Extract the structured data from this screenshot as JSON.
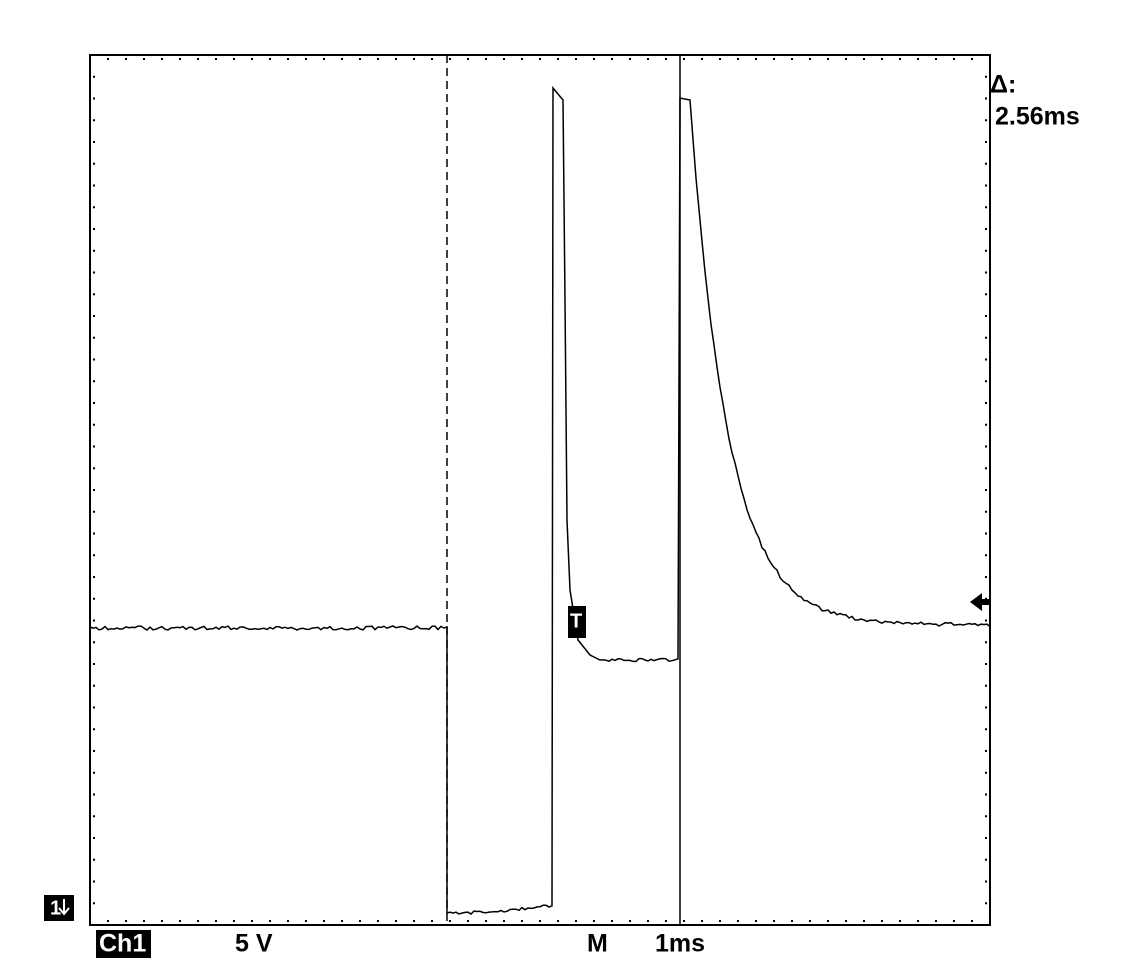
{
  "cursor_readout": {
    "label": "Δ:",
    "value": "2.56ms"
  },
  "channel_marker": "1",
  "trigger_marker": "T",
  "status_bar": {
    "channel": "Ch1",
    "volts_per_div": "5 V",
    "mode": "M",
    "time_per_div": "1ms"
  }
}
